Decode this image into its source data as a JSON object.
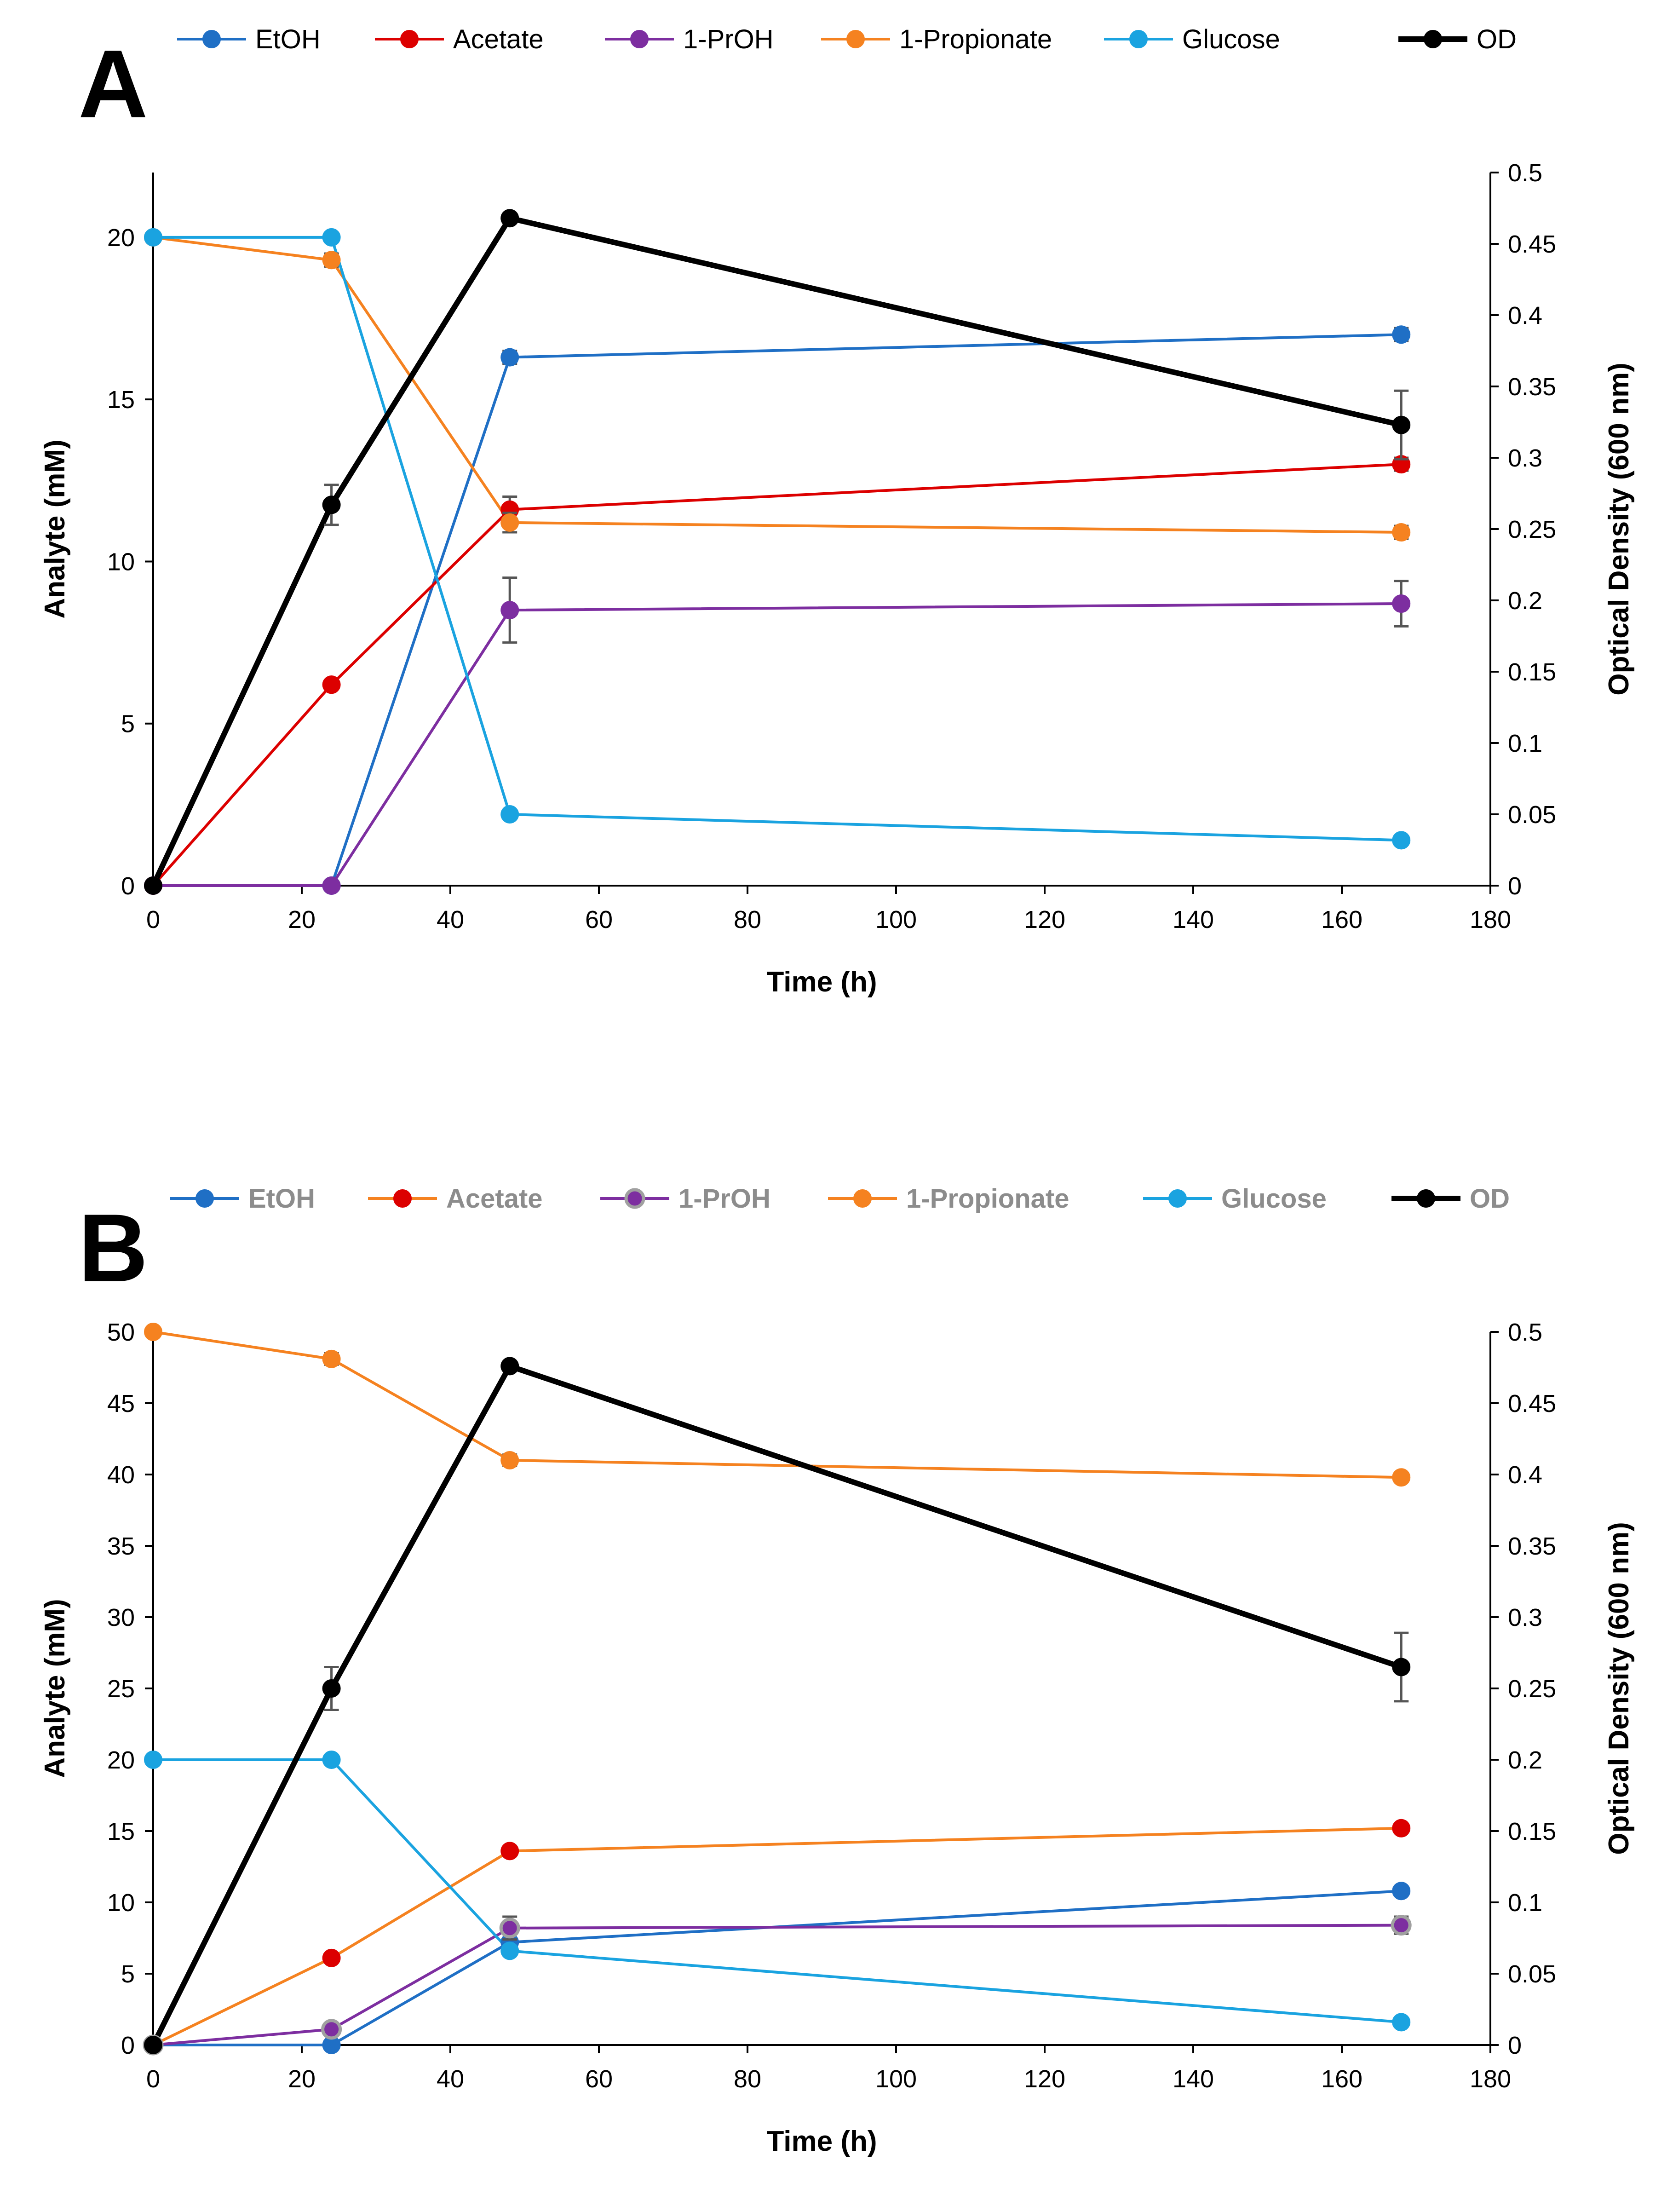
{
  "chart_data": [
    {
      "type": "line",
      "panel": "A",
      "xlabel": "Time (h)",
      "ylabel": "Analyte (mM)",
      "y2label": "Optical Density (600 nm)",
      "xlim": [
        0,
        180
      ],
      "ylim": [
        0,
        22
      ],
      "y2lim": [
        0,
        0.5
      ],
      "xticks": [
        "0",
        "20",
        "40",
        "60",
        "80",
        "100",
        "120",
        "140",
        "160",
        "180"
      ],
      "yticks": [
        "0",
        "5",
        "10",
        "15",
        "20"
      ],
      "y2ticks": [
        "0",
        "0.05",
        "0.1",
        "0.15",
        "0.2",
        "0.25",
        "0.3",
        "0.35",
        "0.4",
        "0.45",
        "0.5"
      ],
      "legend_position": "top",
      "series": [
        {
          "name": "EtOH",
          "axis": "left",
          "color": "#1f6fc5",
          "x": [
            0,
            24,
            48,
            168
          ],
          "values": [
            0,
            0,
            16.3,
            17.0
          ],
          "errors": [
            0,
            0,
            0.2,
            0.2
          ]
        },
        {
          "name": "Acetate",
          "axis": "left",
          "color": "#dc0000",
          "x": [
            0,
            24,
            48,
            168
          ],
          "values": [
            0,
            6.2,
            11.6,
            13.0
          ],
          "errors": [
            0,
            0.1,
            0.4,
            0.2
          ]
        },
        {
          "name": "1-PrOH",
          "axis": "left",
          "color": "#7d2ea0",
          "x": [
            0,
            24,
            48,
            168
          ],
          "values": [
            0,
            0,
            8.5,
            8.7
          ],
          "errors": [
            0,
            0,
            1.0,
            0.7
          ]
        },
        {
          "name": "1-Propionate",
          "axis": "left",
          "color": "#f58220",
          "x": [
            0,
            24,
            48,
            168
          ],
          "values": [
            20,
            19.3,
            11.2,
            10.9
          ],
          "errors": [
            0,
            0.2,
            0.3,
            0.2
          ]
        },
        {
          "name": "Glucose",
          "axis": "left",
          "color": "#1aa3e0",
          "x": [
            0,
            24,
            48,
            168
          ],
          "values": [
            20,
            20,
            2.2,
            1.4
          ],
          "errors": [
            0,
            0,
            0.1,
            0.1
          ]
        },
        {
          "name": "OD",
          "axis": "right",
          "color": "#000000",
          "x": [
            0,
            24,
            48,
            168
          ],
          "values": [
            0,
            0.267,
            0.468,
            0.323
          ],
          "errors": [
            0,
            0.014,
            0.003,
            0.024
          ]
        }
      ]
    },
    {
      "type": "line",
      "panel": "B",
      "xlabel": "Time (h)",
      "ylabel": "Analyte (mM)",
      "y2label": "Optical Density (600 nm)",
      "xlim": [
        0,
        180
      ],
      "ylim": [
        0,
        50
      ],
      "y2lim": [
        0,
        0.5
      ],
      "xticks": [
        "0",
        "20",
        "40",
        "60",
        "80",
        "100",
        "120",
        "140",
        "160",
        "180"
      ],
      "yticks": [
        "0",
        "5",
        "10",
        "15",
        "20",
        "25",
        "30",
        "35",
        "40",
        "45",
        "50"
      ],
      "y2ticks": [
        "0",
        "0.05",
        "0.1",
        "0.15",
        "0.2",
        "0.25",
        "0.3",
        "0.35",
        "0.4",
        "0.45",
        "0.5"
      ],
      "legend_position": "top",
      "series": [
        {
          "name": "EtOH",
          "axis": "left",
          "color": "#1f6fc5",
          "x": [
            0,
            24,
            48,
            168
          ],
          "values": [
            0,
            0,
            7.2,
            10.8
          ],
          "errors": [
            0,
            0,
            0.3,
            0.3
          ]
        },
        {
          "name": "Acetate",
          "axis": "left",
          "color": "#f58220",
          "marker_color": "#dc0000",
          "x": [
            0,
            24,
            48,
            168
          ],
          "values": [
            0,
            6.1,
            13.6,
            15.2
          ],
          "errors": [
            0,
            0.2,
            0.3,
            0.2
          ]
        },
        {
          "name": "1-PrOH",
          "axis": "left",
          "color": "#7d2ea0",
          "marker_edge": "#a0a0a0",
          "x": [
            0,
            24,
            48,
            168
          ],
          "values": [
            0,
            1.1,
            8.2,
            8.4
          ],
          "errors": [
            0,
            0.1,
            0.8,
            0.6
          ]
        },
        {
          "name": "1-Propionate",
          "axis": "left",
          "color": "#f58220",
          "x": [
            0,
            24,
            48,
            168
          ],
          "values": [
            50,
            48.1,
            41.0,
            39.8
          ],
          "errors": [
            0,
            0.4,
            0.4,
            0.3
          ]
        },
        {
          "name": "Glucose",
          "axis": "left",
          "color": "#1aa3e0",
          "x": [
            0,
            24,
            48,
            168
          ],
          "values": [
            20,
            20,
            6.6,
            1.6
          ],
          "errors": [
            0,
            0,
            0.2,
            0.1
          ]
        },
        {
          "name": "OD",
          "axis": "right",
          "color": "#000000",
          "x": [
            0,
            24,
            48,
            168
          ],
          "values": [
            0,
            0.25,
            0.476,
            0.265
          ],
          "errors": [
            0,
            0.015,
            0.003,
            0.024
          ]
        }
      ]
    }
  ]
}
